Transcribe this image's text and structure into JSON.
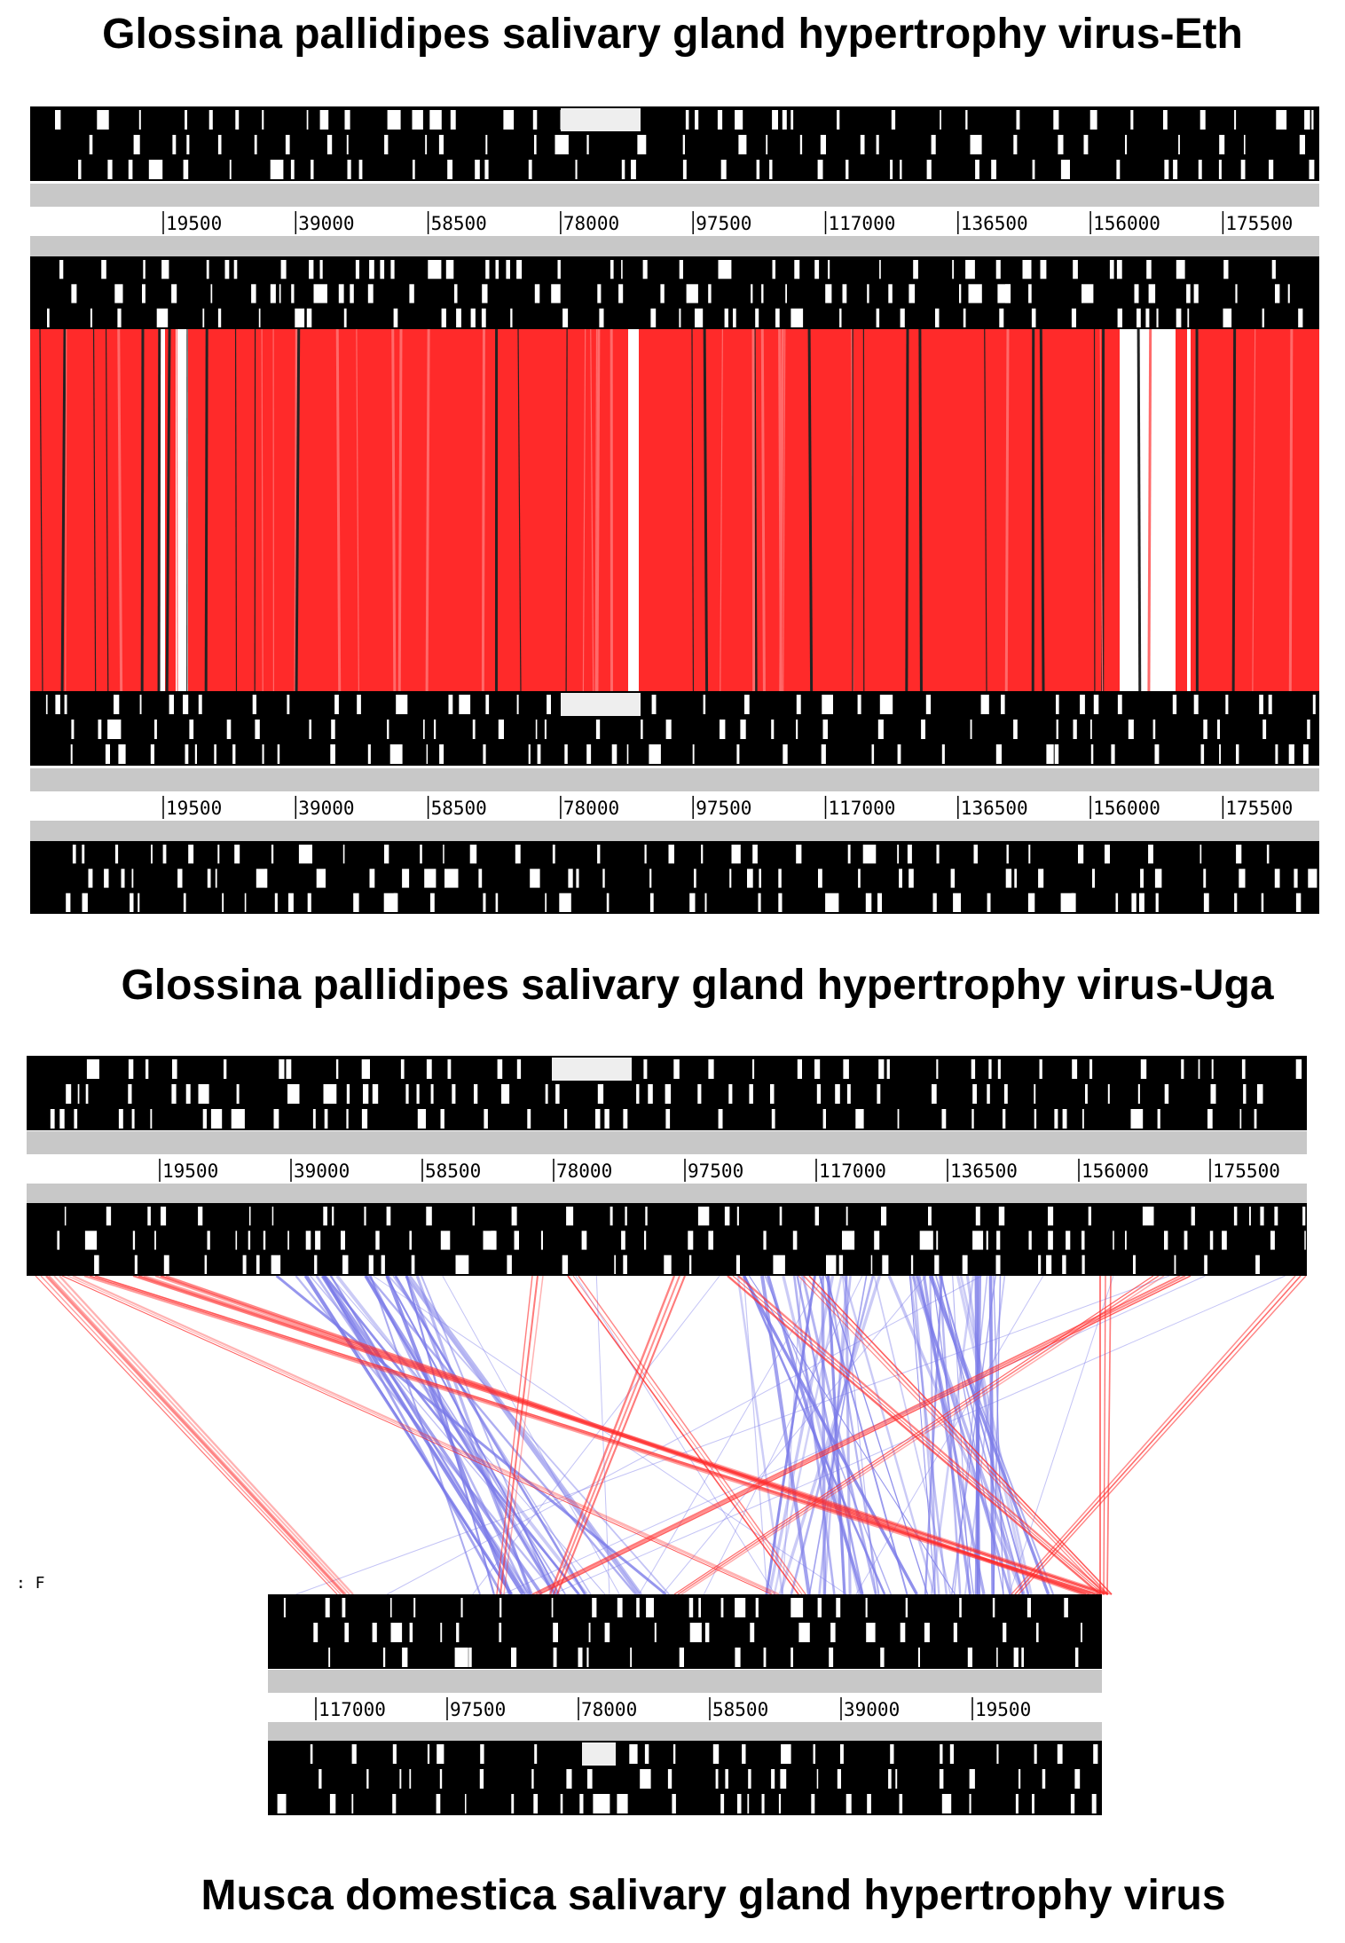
{
  "genomes": [
    {
      "id": "eth",
      "name": "Glossina pallidipes salivary gland hypertrophy virus-Eth",
      "ticks": [
        "19500",
        "39000",
        "58500",
        "78000",
        "97500",
        "117000",
        "136500",
        "156000",
        "175500"
      ]
    },
    {
      "id": "uga",
      "name": "Glossina pallidipes salivary gland hypertrophy virus-Uga",
      "ticks": [
        "19500",
        "39000",
        "58500",
        "78000",
        "97500",
        "117000",
        "136500",
        "156000",
        "175500"
      ]
    },
    {
      "id": "mdsghv",
      "name": "Musca domestica salivary gland hypertrophy virus",
      "ticks": [
        "117000",
        "97500",
        "78000",
        "58500",
        "39000",
        "19500"
      ]
    }
  ],
  "stray_mark": ": F",
  "colors": {
    "feature": "#000000",
    "ruler": "#c8c8c8",
    "gap": "#eeeeee",
    "forward_match": "#ff2a2a",
    "reverse_match": "#7a7ae8"
  }
}
